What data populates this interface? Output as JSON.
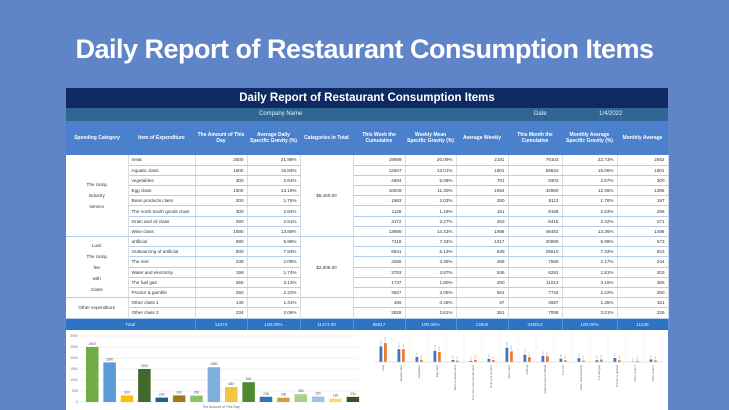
{
  "slide_title": "Daily Report of Restaurant Consumption Items",
  "sheet": {
    "title": "Daily Report of Restaurant Consumption Items",
    "company_label": "Company Name",
    "date_label": "Date",
    "date_value": "1/4/2022"
  },
  "headers": [
    "Spending Category",
    "Item of Expenditure",
    "The Amount of This Day",
    "Average Daily Specific Gravity (%)",
    "Categories in Total",
    "This Week the Cumulative",
    "Weekly Mean Specific Gravity (%)",
    "Average Weekly",
    "This Month the Cumulative",
    "Monthly Average Specific Gravity (%)",
    "Monthly Average"
  ],
  "groups": [
    {
      "category": [
        "The camp",
        "industry",
        "service"
      ],
      "total": "$8,450.00",
      "rows": [
        [
          "meat",
          "2500",
          "21.98%",
          "19989",
          "20.09%",
          "2181",
          "79103",
          "22.73%",
          "2662"
        ],
        [
          "Aquatic class",
          "1800",
          "15.83%",
          "12607",
          "13.01%",
          "1801",
          "55842",
          "16.06%",
          "1801"
        ],
        [
          "vegetables",
          "300",
          "2.64%",
          "4904",
          "5.08%",
          "701",
          "9303",
          "2.67%",
          "300"
        ],
        [
          "Egg class",
          "1500",
          "13.19%",
          "10949",
          "11.30%",
          "1564",
          "42960",
          "12.36%",
          "1386"
        ],
        [
          "Bean products class",
          "200",
          "1.76%",
          "1963",
          "2.03%",
          "280",
          "5112",
          "1.76%",
          "197"
        ],
        [
          "The north-south goods class",
          "300",
          "2.64%",
          "1126",
          "1.16%",
          "161",
          "9159",
          "2.63%",
          "296"
        ],
        [
          "Grain and oil class",
          "290",
          "2.51%",
          "3172",
          "3.27%",
          "453",
          "8415",
          "2.42%",
          "271"
        ],
        [
          "Wine class",
          "1580",
          "13.89%",
          "13988",
          "14.43%",
          "1998",
          "46482",
          "13.36%",
          "1498"
        ]
      ]
    },
    {
      "category": [
        "Luck",
        "The camp",
        "fee",
        "with",
        "Class"
      ],
      "total": "$2,906.00",
      "rows": [
        [
          "artificial",
          "680",
          "5.98%",
          "7118",
          "7.34%",
          "1017",
          "20899",
          "5.98%",
          "673"
        ],
        [
          "Outsourcing of artificial",
          "900",
          "7.93%",
          "6941",
          "6.13%",
          "849",
          "25610",
          "7.33%",
          "823"
        ],
        [
          "The rent",
          "238",
          "2.09%",
          "3255",
          "3.36%",
          "466",
          "7560",
          "2.17%",
          "244"
        ],
        [
          "Water and electricity",
          "198",
          "1.74%",
          "3753",
          "3.87%",
          "536",
          "6291",
          "1.81%",
          "203"
        ],
        [
          "The fuel gas",
          "356",
          "3.13%",
          "1747",
          "1.80%",
          "250",
          "11012",
          "3.16%",
          "355"
        ],
        [
          "Proctor & gamble",
          "250",
          "2.22%",
          "3927",
          "4.05%",
          "561",
          "7742",
          "2.22%",
          "250"
        ]
      ]
    },
    {
      "category": [
        "Other expenditure"
      ],
      "total": "",
      "rows": [
        [
          "Other class 1",
          "149",
          "1.31%",
          "466",
          "0.48%",
          "67",
          "4687",
          "1.35%",
          "151"
        ],
        [
          "Other class 2",
          "234",
          "2.06%",
          "2529",
          "2.61%",
          "361",
          "7008",
          "2.01%",
          "226"
        ]
      ]
    }
  ],
  "total": [
    "Total",
    "11374",
    "100.00%",
    "11374.00",
    "96917",
    "100.00%",
    "13845",
    "348013",
    "100.00%",
    "11226"
  ],
  "chart_data": [
    {
      "type": "bar",
      "title": "",
      "xlabel": "The Amount of This Day",
      "ylim": [
        0,
        3000
      ],
      "yticks": [
        "0",
        "500",
        "1000",
        "1500",
        "2000",
        "2500",
        "3000"
      ],
      "values": [
        2500,
        1800,
        300,
        1500,
        200,
        300,
        290,
        1580,
        680,
        900,
        238,
        198,
        356,
        250,
        149,
        234
      ],
      "colors": [
        "#70ad47",
        "#5b9bd5",
        "#ffc000",
        "#43682b",
        "#255e91",
        "#9e7a1f",
        "#8cc168",
        "#7faedf",
        "#f4c542",
        "#4e8a2e",
        "#2f75b5",
        "#c9a23a",
        "#a9d18e",
        "#9dc3e6",
        "#ffd966",
        "#375623"
      ]
    },
    {
      "type": "bar",
      "categories": [
        "meat",
        "Aquatic class",
        "vegetables",
        "Egg class",
        "Bean products class",
        "The north-south goods class",
        "Grain and oil class",
        "Wine class",
        "artificial",
        "Outsourcing of artificial",
        "The rent",
        "Water and electricity",
        "The fuel gas",
        "Proctor & gamble",
        "Other class 1",
        "Other class 2"
      ],
      "series": [
        {
          "name": "Average Weekly",
          "color": "#4472c4",
          "values": [
            2181,
            1801,
            701,
            1564,
            280,
            161,
            453,
            1998,
            1017,
            849,
            466,
            536,
            250,
            561,
            67,
            361
          ]
        },
        {
          "name": "Monthly Average",
          "color": "#ed7d31",
          "values": [
            2662,
            1801,
            300,
            1386,
            197,
            296,
            271,
            1498,
            673,
            823,
            244,
            203,
            355,
            250,
            151,
            226
          ]
        }
      ]
    }
  ]
}
